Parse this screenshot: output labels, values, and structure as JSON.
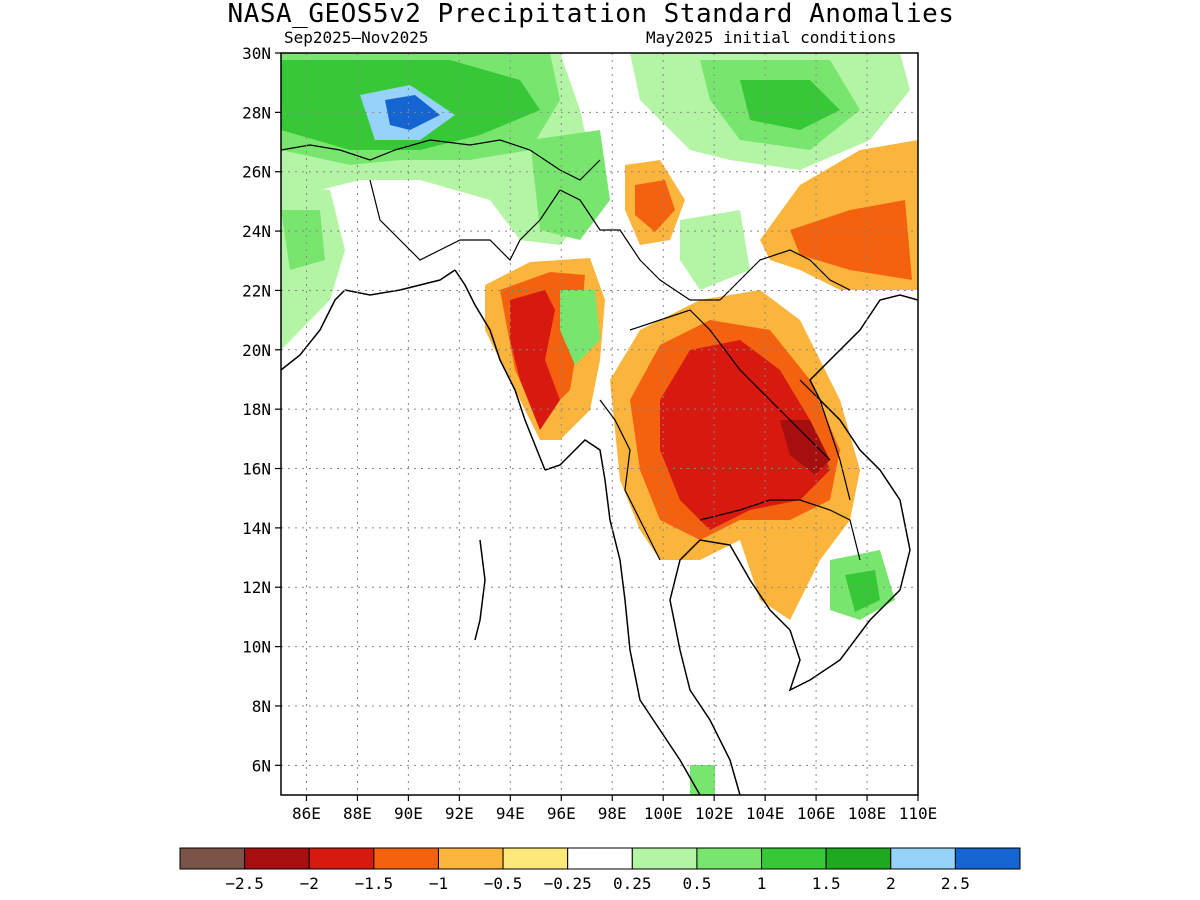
{
  "title": "NASA_GEOS5v2 Precipitation Standard Anomalies",
  "subtitle_left": "Sep2025–Nov2025",
  "subtitle_right": "May2025 initial conditions",
  "lat_labels": [
    "30N",
    "28N",
    "26N",
    "24N",
    "22N",
    "20N",
    "18N",
    "16N",
    "14N",
    "12N",
    "10N",
    "8N",
    "6N"
  ],
  "lon_labels": [
    "86E",
    "88E",
    "90E",
    "92E",
    "94E",
    "96E",
    "98E",
    "100E",
    "102E",
    "104E",
    "106E",
    "108E",
    "110E"
  ],
  "colorbar": {
    "colors": [
      "#7a5446",
      "#a50f0f",
      "#d7190f",
      "#f5620f",
      "#fbb43c",
      "#fde87a",
      "#ffffff",
      "#b4f5a5",
      "#78e66e",
      "#37c837",
      "#1eaa1e",
      "#96d2fa",
      "#1464d2"
    ],
    "labels": [
      "−2.5",
      "−2",
      "−1.5",
      "−1",
      "−0.5",
      "−0.25",
      "0.25",
      "0.5",
      "1",
      "1.5",
      "2",
      "2.5"
    ]
  },
  "map": {
    "lon_range": [
      85,
      110
    ],
    "lat_range": [
      5,
      30
    ],
    "grid": true
  }
}
